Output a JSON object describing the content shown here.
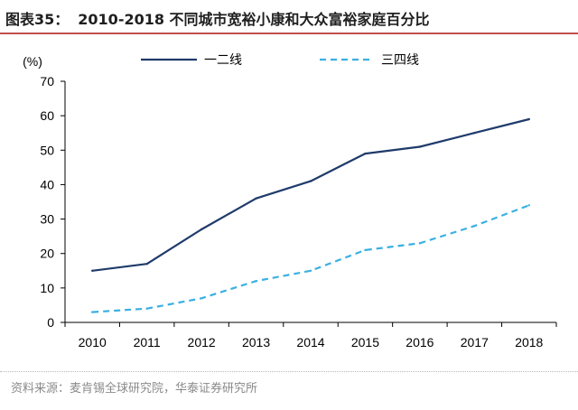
{
  "figure": {
    "number": "图表35：",
    "title": "2010-2018 不同城市宽裕小康和大众富裕家庭百分比"
  },
  "source": "资料来源：麦肯锡全球研究院，华泰证券研究所",
  "colors": {
    "series1": "#1f3b6b",
    "series2": "#3ab0e2",
    "title_rule": "#c0504d"
  },
  "chart_data": {
    "type": "line",
    "x": [
      "2010",
      "2011",
      "2012",
      "2013",
      "2014",
      "2015",
      "2016",
      "2017",
      "2018"
    ],
    "ylabel": "(%)",
    "ylim": [
      0,
      70
    ],
    "yticks": [
      0,
      10,
      20,
      30,
      40,
      50,
      60,
      70
    ],
    "grid": false,
    "legend_position": "top",
    "series": [
      {
        "name": "一二线",
        "style": "solid",
        "color": "#1f3b6b",
        "values": [
          15,
          17,
          27,
          36,
          41,
          49,
          51,
          55,
          59
        ]
      },
      {
        "name": "三四线",
        "style": "dashed",
        "color": "#3ab0e2",
        "values": [
          3,
          4,
          7,
          12,
          15,
          21,
          23,
          28,
          34
        ]
      }
    ]
  }
}
